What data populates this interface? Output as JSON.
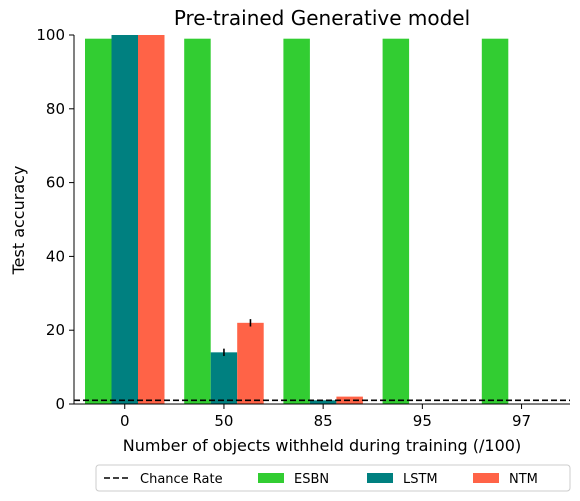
{
  "chart_data": {
    "type": "bar",
    "title": "Pre-trained Generative model",
    "xlabel": "Number of objects withheld during training (/100)",
    "ylabel": "Test accuracy",
    "categories": [
      "0",
      "50",
      "85",
      "95",
      "97"
    ],
    "ylim": [
      0,
      100
    ],
    "yticks": [
      0,
      20,
      40,
      60,
      80,
      100
    ],
    "series": [
      {
        "name": "ESBN",
        "color": "#32cd32",
        "values": [
          99,
          99,
          99,
          99,
          99
        ],
        "errors": [
          0,
          0,
          0,
          0,
          0
        ]
      },
      {
        "name": "LSTM",
        "color": "#008080",
        "values": [
          100,
          14,
          1,
          null,
          null
        ],
        "errors": [
          0,
          1,
          0,
          0,
          0
        ]
      },
      {
        "name": "NTM",
        "color": "#ff6347",
        "values": [
          100,
          22,
          2,
          null,
          null
        ],
        "errors": [
          0,
          1,
          0,
          0,
          0
        ]
      }
    ],
    "reference_line": {
      "name": "Chance Rate",
      "value": 1,
      "style": "dashed",
      "color": "#000000"
    },
    "legend": {
      "placement": "bottom",
      "entries": [
        "Chance Rate",
        "ESBN",
        "LSTM",
        "NTM"
      ]
    },
    "grid": false
  }
}
